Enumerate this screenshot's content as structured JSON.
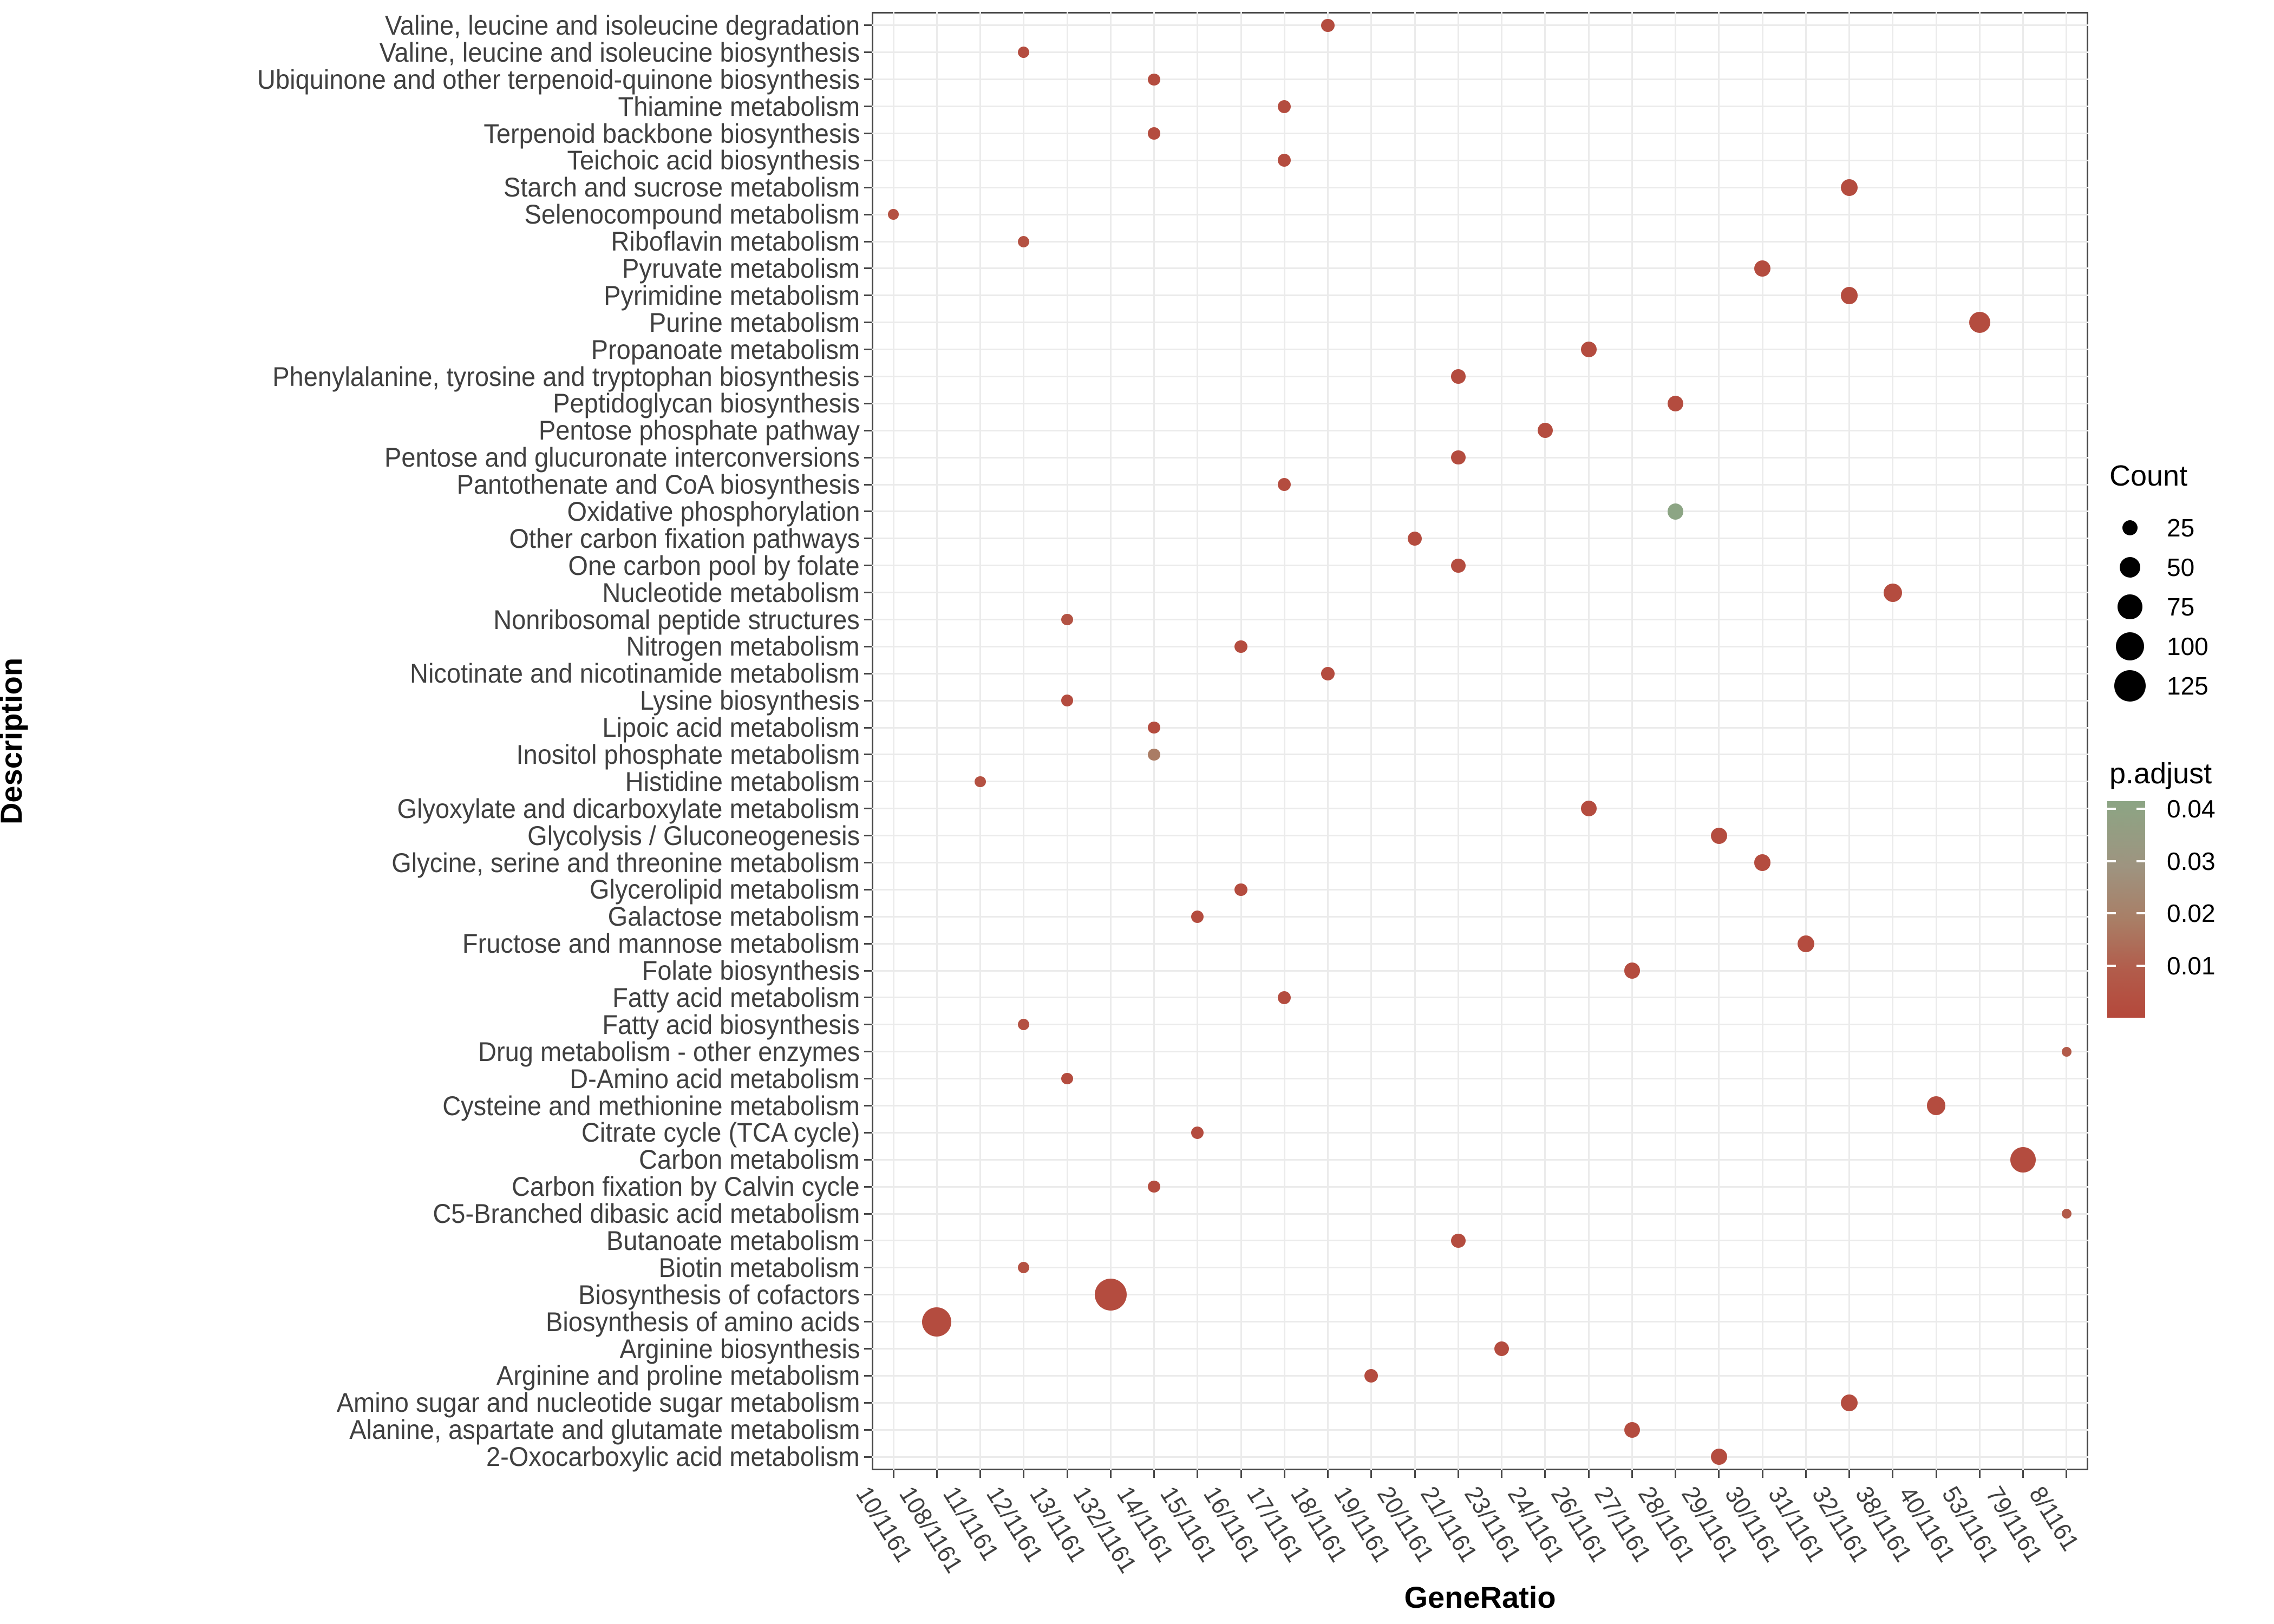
{
  "axes": {
    "x_title": "GeneRatio",
    "y_title": "Description"
  },
  "legend": {
    "count": {
      "title": "Count",
      "entries": [
        {
          "label": "25",
          "value": 25
        },
        {
          "label": "50",
          "value": 50
        },
        {
          "label": "75",
          "value": 75
        },
        {
          "label": "100",
          "value": 100
        },
        {
          "label": "125",
          "value": 125
        }
      ]
    },
    "p_adjust": {
      "title": "p.adjust",
      "tick_labels": [
        "0.04",
        "0.03",
        "0.02",
        "0.01"
      ],
      "tick_values": [
        0.04,
        0.03,
        0.02,
        0.01
      ],
      "scale_top_value": 0.0415,
      "scale_bottom_value": 0.0
    }
  },
  "style": {
    "background": "#ffffff",
    "grid_color": "#ebebeb",
    "panel_border_color": "#474747",
    "axis_text_color": "#404040",
    "tick_color": "#474747",
    "red_low_p": "#B5483B",
    "green_high_p": "#8CA584",
    "gradient_stops": [
      "#8CA584",
      "#9E9480",
      "#A97E66",
      "#B25C4B",
      "#B5483B"
    ]
  },
  "chart_data": {
    "type": "scatter",
    "title": "",
    "xlabel": "GeneRatio",
    "ylabel": "Description",
    "background_gene_count": 1161,
    "x_categories": [
      "10/1161",
      "108/1161",
      "11/1161",
      "12/1161",
      "13/1161",
      "132/1161",
      "14/1161",
      "15/1161",
      "16/1161",
      "17/1161",
      "18/1161",
      "19/1161",
      "20/1161",
      "21/1161",
      "23/1161",
      "24/1161",
      "26/1161",
      "27/1161",
      "28/1161",
      "29/1161",
      "30/1161",
      "31/1161",
      "32/1161",
      "38/1161",
      "40/1161",
      "53/1161",
      "79/1161",
      "8/1161"
    ],
    "size_legend_values": [
      25,
      50,
      75,
      100,
      125
    ],
    "points": [
      {
        "label": "Valine, leucine and isoleucine degradation",
        "ratio": "18/1161",
        "count": 18,
        "p_adjust": 0.002
      },
      {
        "label": "Valine, leucine and isoleucine biosynthesis",
        "ratio": "12/1161",
        "count": 12,
        "p_adjust": 0.002
      },
      {
        "label": "Ubiquinone and other terpenoid-quinone biosynthesis",
        "ratio": "14/1161",
        "count": 14,
        "p_adjust": 0.002
      },
      {
        "label": "Thiamine metabolism",
        "ratio": "17/1161",
        "count": 17,
        "p_adjust": 0.002
      },
      {
        "label": "Terpenoid backbone biosynthesis",
        "ratio": "14/1161",
        "count": 14,
        "p_adjust": 0.002
      },
      {
        "label": "Teichoic acid biosynthesis",
        "ratio": "17/1161",
        "count": 17,
        "p_adjust": 0.002
      },
      {
        "label": "Starch and sucrose metabolism",
        "ratio": "32/1161",
        "count": 32,
        "p_adjust": 0.002
      },
      {
        "label": "Selenocompound metabolism",
        "ratio": "10/1161",
        "count": 10,
        "p_adjust": 0.004
      },
      {
        "label": "Riboflavin metabolism",
        "ratio": "12/1161",
        "count": 12,
        "p_adjust": 0.004
      },
      {
        "label": "Pyruvate metabolism",
        "ratio": "30/1161",
        "count": 30,
        "p_adjust": 0.002
      },
      {
        "label": "Pyrimidine metabolism",
        "ratio": "32/1161",
        "count": 32,
        "p_adjust": 0.002
      },
      {
        "label": "Purine metabolism",
        "ratio": "53/1161",
        "count": 53,
        "p_adjust": 0.002
      },
      {
        "label": "Propanoate metabolism",
        "ratio": "26/1161",
        "count": 26,
        "p_adjust": 0.002
      },
      {
        "label": "Phenylalanine, tyrosine and tryptophan biosynthesis",
        "ratio": "21/1161",
        "count": 21,
        "p_adjust": 0.002
      },
      {
        "label": "Peptidoglycan biosynthesis",
        "ratio": "28/1161",
        "count": 28,
        "p_adjust": 0.002
      },
      {
        "label": "Pentose phosphate pathway",
        "ratio": "24/1161",
        "count": 24,
        "p_adjust": 0.002
      },
      {
        "label": "Pentose and glucuronate interconversions",
        "ratio": "21/1161",
        "count": 21,
        "p_adjust": 0.002
      },
      {
        "label": "Pantothenate and CoA biosynthesis",
        "ratio": "17/1161",
        "count": 17,
        "p_adjust": 0.002
      },
      {
        "label": "Oxidative phosphorylation",
        "ratio": "28/1161",
        "count": 28,
        "p_adjust": 0.042
      },
      {
        "label": "Other carbon fixation pathways",
        "ratio": "20/1161",
        "count": 20,
        "p_adjust": 0.002
      },
      {
        "label": "One carbon pool by folate",
        "ratio": "21/1161",
        "count": 21,
        "p_adjust": 0.002
      },
      {
        "label": "Nucleotide metabolism",
        "ratio": "38/1161",
        "count": 38,
        "p_adjust": 0.002
      },
      {
        "label": "Nonribosomal peptide structures",
        "ratio": "13/1161",
        "count": 13,
        "p_adjust": 0.005
      },
      {
        "label": "Nitrogen metabolism",
        "ratio": "16/1161",
        "count": 16,
        "p_adjust": 0.002
      },
      {
        "label": "Nicotinate and nicotinamide metabolism",
        "ratio": "18/1161",
        "count": 18,
        "p_adjust": 0.002
      },
      {
        "label": "Lysine biosynthesis",
        "ratio": "13/1161",
        "count": 13,
        "p_adjust": 0.002
      },
      {
        "label": "Lipoic acid metabolism",
        "ratio": "14/1161",
        "count": 14,
        "p_adjust": 0.002
      },
      {
        "label": "Inositol phosphate metabolism",
        "ratio": "14/1161",
        "count": 14,
        "p_adjust": 0.018
      },
      {
        "label": "Histidine metabolism",
        "ratio": "11/1161",
        "count": 11,
        "p_adjust": 0.004
      },
      {
        "label": "Glyoxylate and dicarboxylate metabolism",
        "ratio": "26/1161",
        "count": 26,
        "p_adjust": 0.002
      },
      {
        "label": "Glycolysis / Gluconeogenesis",
        "ratio": "29/1161",
        "count": 29,
        "p_adjust": 0.002
      },
      {
        "label": "Glycine, serine and threonine metabolism",
        "ratio": "30/1161",
        "count": 30,
        "p_adjust": 0.002
      },
      {
        "label": "Glycerolipid metabolism",
        "ratio": "16/1161",
        "count": 16,
        "p_adjust": 0.002
      },
      {
        "label": "Galactose metabolism",
        "ratio": "15/1161",
        "count": 15,
        "p_adjust": 0.002
      },
      {
        "label": "Fructose and mannose metabolism",
        "ratio": "31/1161",
        "count": 31,
        "p_adjust": 0.002
      },
      {
        "label": "Folate biosynthesis",
        "ratio": "27/1161",
        "count": 27,
        "p_adjust": 0.002
      },
      {
        "label": "Fatty acid metabolism",
        "ratio": "17/1161",
        "count": 17,
        "p_adjust": 0.002
      },
      {
        "label": "Fatty acid biosynthesis",
        "ratio": "12/1161",
        "count": 12,
        "p_adjust": 0.004
      },
      {
        "label": "Drug metabolism - other enzymes",
        "ratio": "8/1161",
        "count": 8,
        "p_adjust": 0.008
      },
      {
        "label": "D-Amino acid metabolism",
        "ratio": "13/1161",
        "count": 13,
        "p_adjust": 0.002
      },
      {
        "label": "Cysteine and methionine metabolism",
        "ratio": "40/1161",
        "count": 40,
        "p_adjust": 0.002
      },
      {
        "label": "Citrate cycle (TCA cycle)",
        "ratio": "15/1161",
        "count": 15,
        "p_adjust": 0.002
      },
      {
        "label": "Carbon metabolism",
        "ratio": "79/1161",
        "count": 79,
        "p_adjust": 0.002
      },
      {
        "label": "Carbon fixation by Calvin cycle",
        "ratio": "14/1161",
        "count": 14,
        "p_adjust": 0.002
      },
      {
        "label": "C5-Branched dibasic acid metabolism",
        "ratio": "8/1161",
        "count": 8,
        "p_adjust": 0.008
      },
      {
        "label": "Butanoate metabolism",
        "ratio": "21/1161",
        "count": 21,
        "p_adjust": 0.002
      },
      {
        "label": "Biotin metabolism",
        "ratio": "12/1161",
        "count": 12,
        "p_adjust": 0.004
      },
      {
        "label": "Biosynthesis of cofactors",
        "ratio": "132/1161",
        "count": 132,
        "p_adjust": 0.002
      },
      {
        "label": "Biosynthesis of amino acids",
        "ratio": "108/1161",
        "count": 108,
        "p_adjust": 0.002
      },
      {
        "label": "Arginine biosynthesis",
        "ratio": "23/1161",
        "count": 23,
        "p_adjust": 0.002
      },
      {
        "label": "Arginine and proline metabolism",
        "ratio": "19/1161",
        "count": 19,
        "p_adjust": 0.002
      },
      {
        "label": "Amino sugar and nucleotide sugar metabolism",
        "ratio": "32/1161",
        "count": 32,
        "p_adjust": 0.002
      },
      {
        "label": "Alanine, aspartate and glutamate metabolism",
        "ratio": "27/1161",
        "count": 27,
        "p_adjust": 0.002
      },
      {
        "label": "2-Oxocarboxylic acid metabolism",
        "ratio": "29/1161",
        "count": 29,
        "p_adjust": 0.002
      }
    ]
  }
}
